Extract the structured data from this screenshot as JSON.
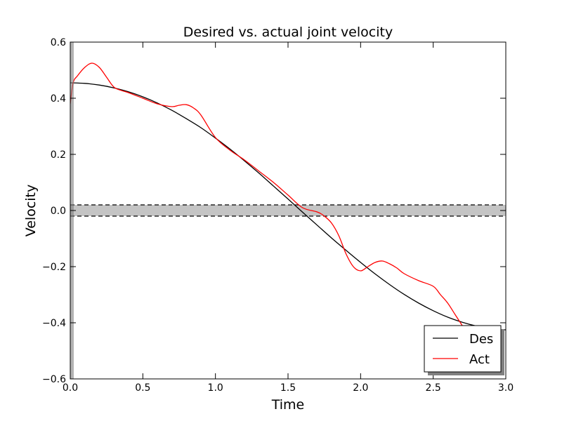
{
  "chart_data": {
    "type": "line",
    "title": "Desired vs. actual joint velocity",
    "xlabel": "Time",
    "ylabel": "Velocity",
    "xlim": [
      0.0,
      3.0
    ],
    "ylim": [
      -0.6,
      0.6
    ],
    "xticks": [
      0.0,
      0.5,
      1.0,
      1.5,
      2.0,
      2.5,
      3.0
    ],
    "xtick_labels": [
      "0.0",
      "0.5",
      "1.0",
      "1.5",
      "2.0",
      "2.5",
      "3.0"
    ],
    "yticks": [
      -0.6,
      -0.4,
      -0.2,
      0.0,
      0.2,
      0.4,
      0.6
    ],
    "ytick_labels": [
      "−0.6",
      "−0.4",
      "−0.2",
      "0.0",
      "0.2",
      "0.4",
      "0.6"
    ],
    "grid": false,
    "legend_position": "bottom-right",
    "band": {
      "y_low": -0.02,
      "y_high": 0.02,
      "color": "#c4c4c4",
      "line_style": "dashed"
    },
    "series": [
      {
        "name": "Des",
        "color": "#000000",
        "x": [
          0.0,
          0.1,
          0.2,
          0.3,
          0.4,
          0.5,
          0.6,
          0.7,
          0.8,
          0.9,
          1.0,
          1.1,
          1.2,
          1.3,
          1.4,
          1.5,
          1.6,
          1.7,
          1.8,
          1.9,
          2.0,
          2.1,
          2.2,
          2.3,
          2.4,
          2.5,
          2.6,
          2.7,
          2.8,
          2.9,
          3.0
        ],
        "y": [
          0.455,
          0.453,
          0.447,
          0.437,
          0.423,
          0.405,
          0.383,
          0.357,
          0.327,
          0.295,
          0.258,
          0.219,
          0.177,
          0.133,
          0.087,
          0.041,
          -0.006,
          -0.052,
          -0.098,
          -0.142,
          -0.185,
          -0.226,
          -0.264,
          -0.299,
          -0.33,
          -0.357,
          -0.38,
          -0.398,
          -0.412,
          -0.422,
          -0.425
        ]
      },
      {
        "name": "Act",
        "color": "#ff0000",
        "x": [
          0.0,
          0.02,
          0.05,
          0.1,
          0.15,
          0.2,
          0.25,
          0.3,
          0.35,
          0.4,
          0.5,
          0.6,
          0.7,
          0.75,
          0.8,
          0.85,
          0.9,
          1.0,
          1.1,
          1.2,
          1.3,
          1.4,
          1.5,
          1.6,
          1.7,
          1.75,
          1.8,
          1.85,
          1.9,
          1.95,
          2.0,
          2.05,
          2.1,
          2.15,
          2.2,
          2.25,
          2.3,
          2.4,
          2.5,
          2.55,
          2.6,
          2.65,
          2.7,
          2.75
        ],
        "y": [
          0.38,
          0.455,
          0.48,
          0.51,
          0.525,
          0.51,
          0.475,
          0.44,
          0.428,
          0.42,
          0.4,
          0.38,
          0.37,
          0.375,
          0.377,
          0.365,
          0.34,
          0.26,
          0.215,
          0.18,
          0.14,
          0.1,
          0.055,
          0.01,
          -0.005,
          -0.02,
          -0.045,
          -0.09,
          -0.155,
          -0.2,
          -0.215,
          -0.2,
          -0.185,
          -0.18,
          -0.19,
          -0.205,
          -0.225,
          -0.25,
          -0.27,
          -0.3,
          -0.33,
          -0.37,
          -0.41,
          -0.45
        ]
      }
    ]
  }
}
